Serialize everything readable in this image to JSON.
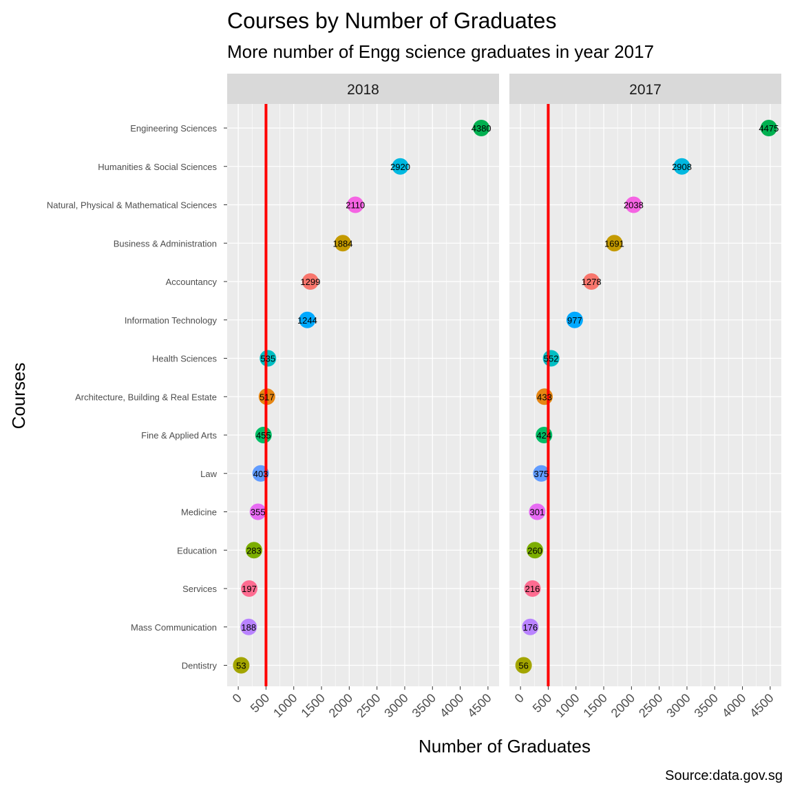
{
  "chart_data": {
    "type": "scatter",
    "title": "Courses by Number of Graduates",
    "subtitle": "More number of Engg science graduates in year 2017",
    "xlabel": "Number of Graduates",
    "ylabel": "Courses",
    "caption": "Source:data.gov.sg",
    "xlim": [
      -200,
      4700
    ],
    "x_ticks": [
      "0",
      "500",
      "1000",
      "1500",
      "2000",
      "2500",
      "3000",
      "3500",
      "4000",
      "4500"
    ],
    "x_tick_values": [
      0,
      500,
      1000,
      1500,
      2000,
      2500,
      3000,
      3500,
      4000,
      4500
    ],
    "reference_line": {
      "x": 500,
      "color": "#ff0000"
    },
    "grid": true,
    "legend": "none",
    "categories": [
      "Engineering Sciences",
      "Humanities & Social Sciences",
      "Natural, Physical & Mathematical Sciences",
      "Business & Administration",
      "Accountancy",
      "Information Technology",
      "Health Sciences",
      "Architecture, Building & Real Estate",
      "Fine & Applied Arts",
      "Law",
      "Medicine",
      "Education",
      "Services",
      "Mass Communication",
      "Dentistry"
    ],
    "colors": [
      "#00B050",
      "#00B8E0",
      "#F564E3",
      "#C49A00",
      "#F8766D",
      "#00A9FF",
      "#00BFC4",
      "#E68613",
      "#00BE67",
      "#619CFF",
      "#E76BF3",
      "#7CAE00",
      "#FF6C91",
      "#B983FF",
      "#A3A500"
    ],
    "panels": [
      {
        "label": "2018",
        "values": [
          4380,
          2920,
          2110,
          1884,
          1299,
          1244,
          535,
          517,
          455,
          403,
          355,
          283,
          197,
          188,
          53
        ]
      },
      {
        "label": "2017",
        "values": [
          4475,
          2908,
          2038,
          1691,
          1278,
          977,
          552,
          433,
          424,
          375,
          301,
          260,
          216,
          176,
          56
        ]
      }
    ]
  }
}
